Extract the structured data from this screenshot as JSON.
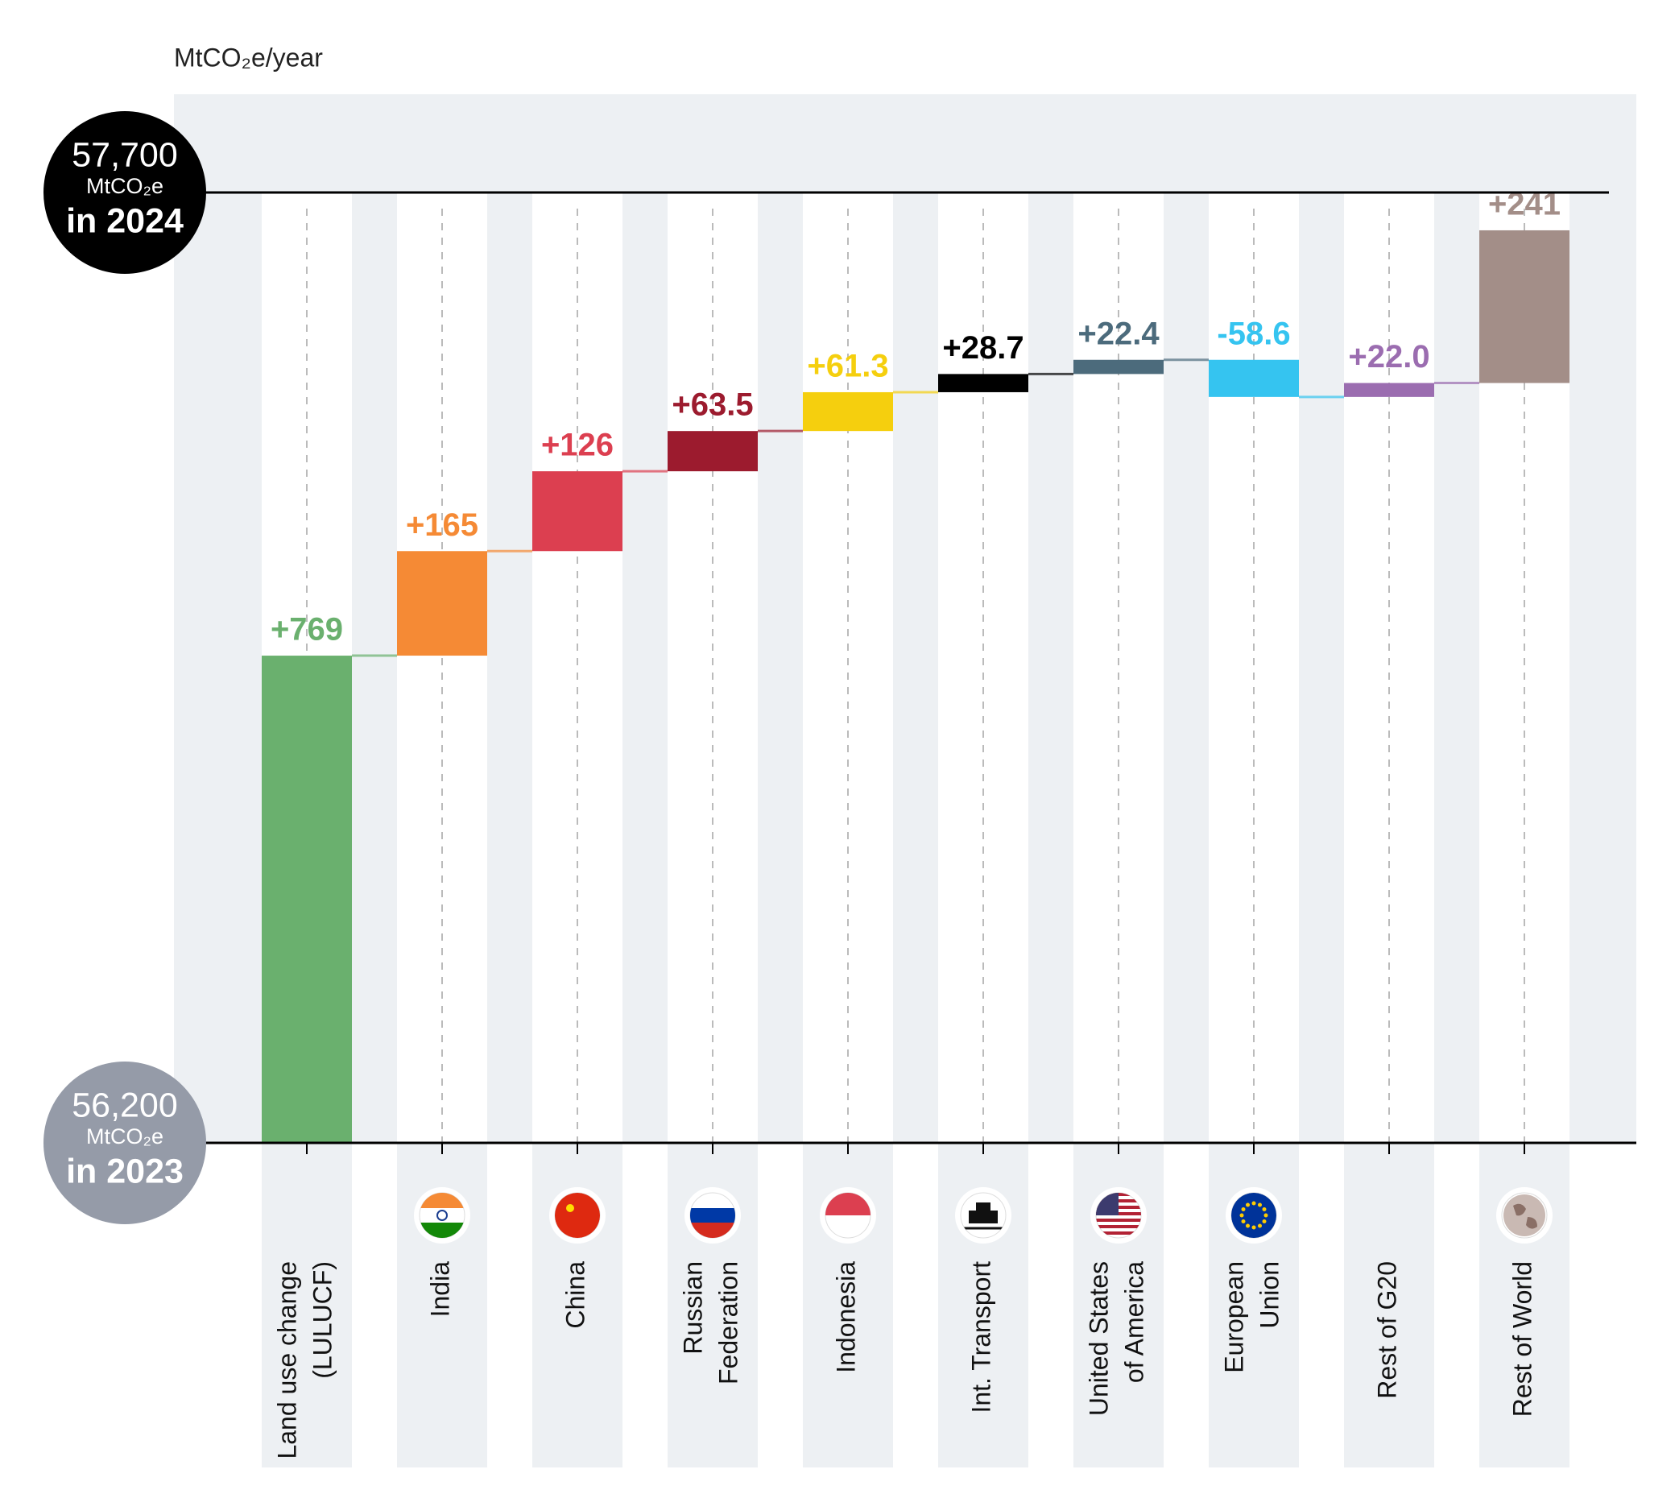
{
  "chart_data": {
    "type": "waterfall",
    "y_axis_label": "MtCO₂e/year",
    "ylim": [
      56200,
      57700
    ],
    "yticks": [
      {
        "value": 56200,
        "label": "56,200"
      },
      {
        "value": 57700,
        "label": "57,700"
      }
    ],
    "tick_unit": "MtCO₂e",
    "tick_captions": [
      "in 2023",
      "in 2024"
    ],
    "categories": [
      [
        "Land use change",
        "(LULUCF)"
      ],
      [
        "India"
      ],
      [
        "China"
      ],
      [
        "Russian",
        "Federation"
      ],
      [
        "Indonesia"
      ],
      [
        "Int. Transport"
      ],
      [
        "United States",
        "of America"
      ],
      [
        "European",
        "Union"
      ],
      [
        "Rest of G20"
      ],
      [
        "Rest of World"
      ]
    ],
    "values": [
      769,
      165,
      126,
      63.5,
      61.3,
      28.7,
      22.4,
      -58.6,
      22.0,
      241
    ],
    "value_labels": [
      "+769",
      "+165",
      "+126",
      "+63.5",
      "+61.3",
      "+28.7",
      "+22.4",
      "-58.6",
      "+22.0",
      "+241"
    ],
    "colors": [
      "#6ab06e",
      "#f58a35",
      "#dc3f50",
      "#9c1b2e",
      "#f5cf0e",
      "#000000",
      "#4c6b7c",
      "#35c4f0",
      "#9b6db0",
      "#a38e88"
    ]
  }
}
